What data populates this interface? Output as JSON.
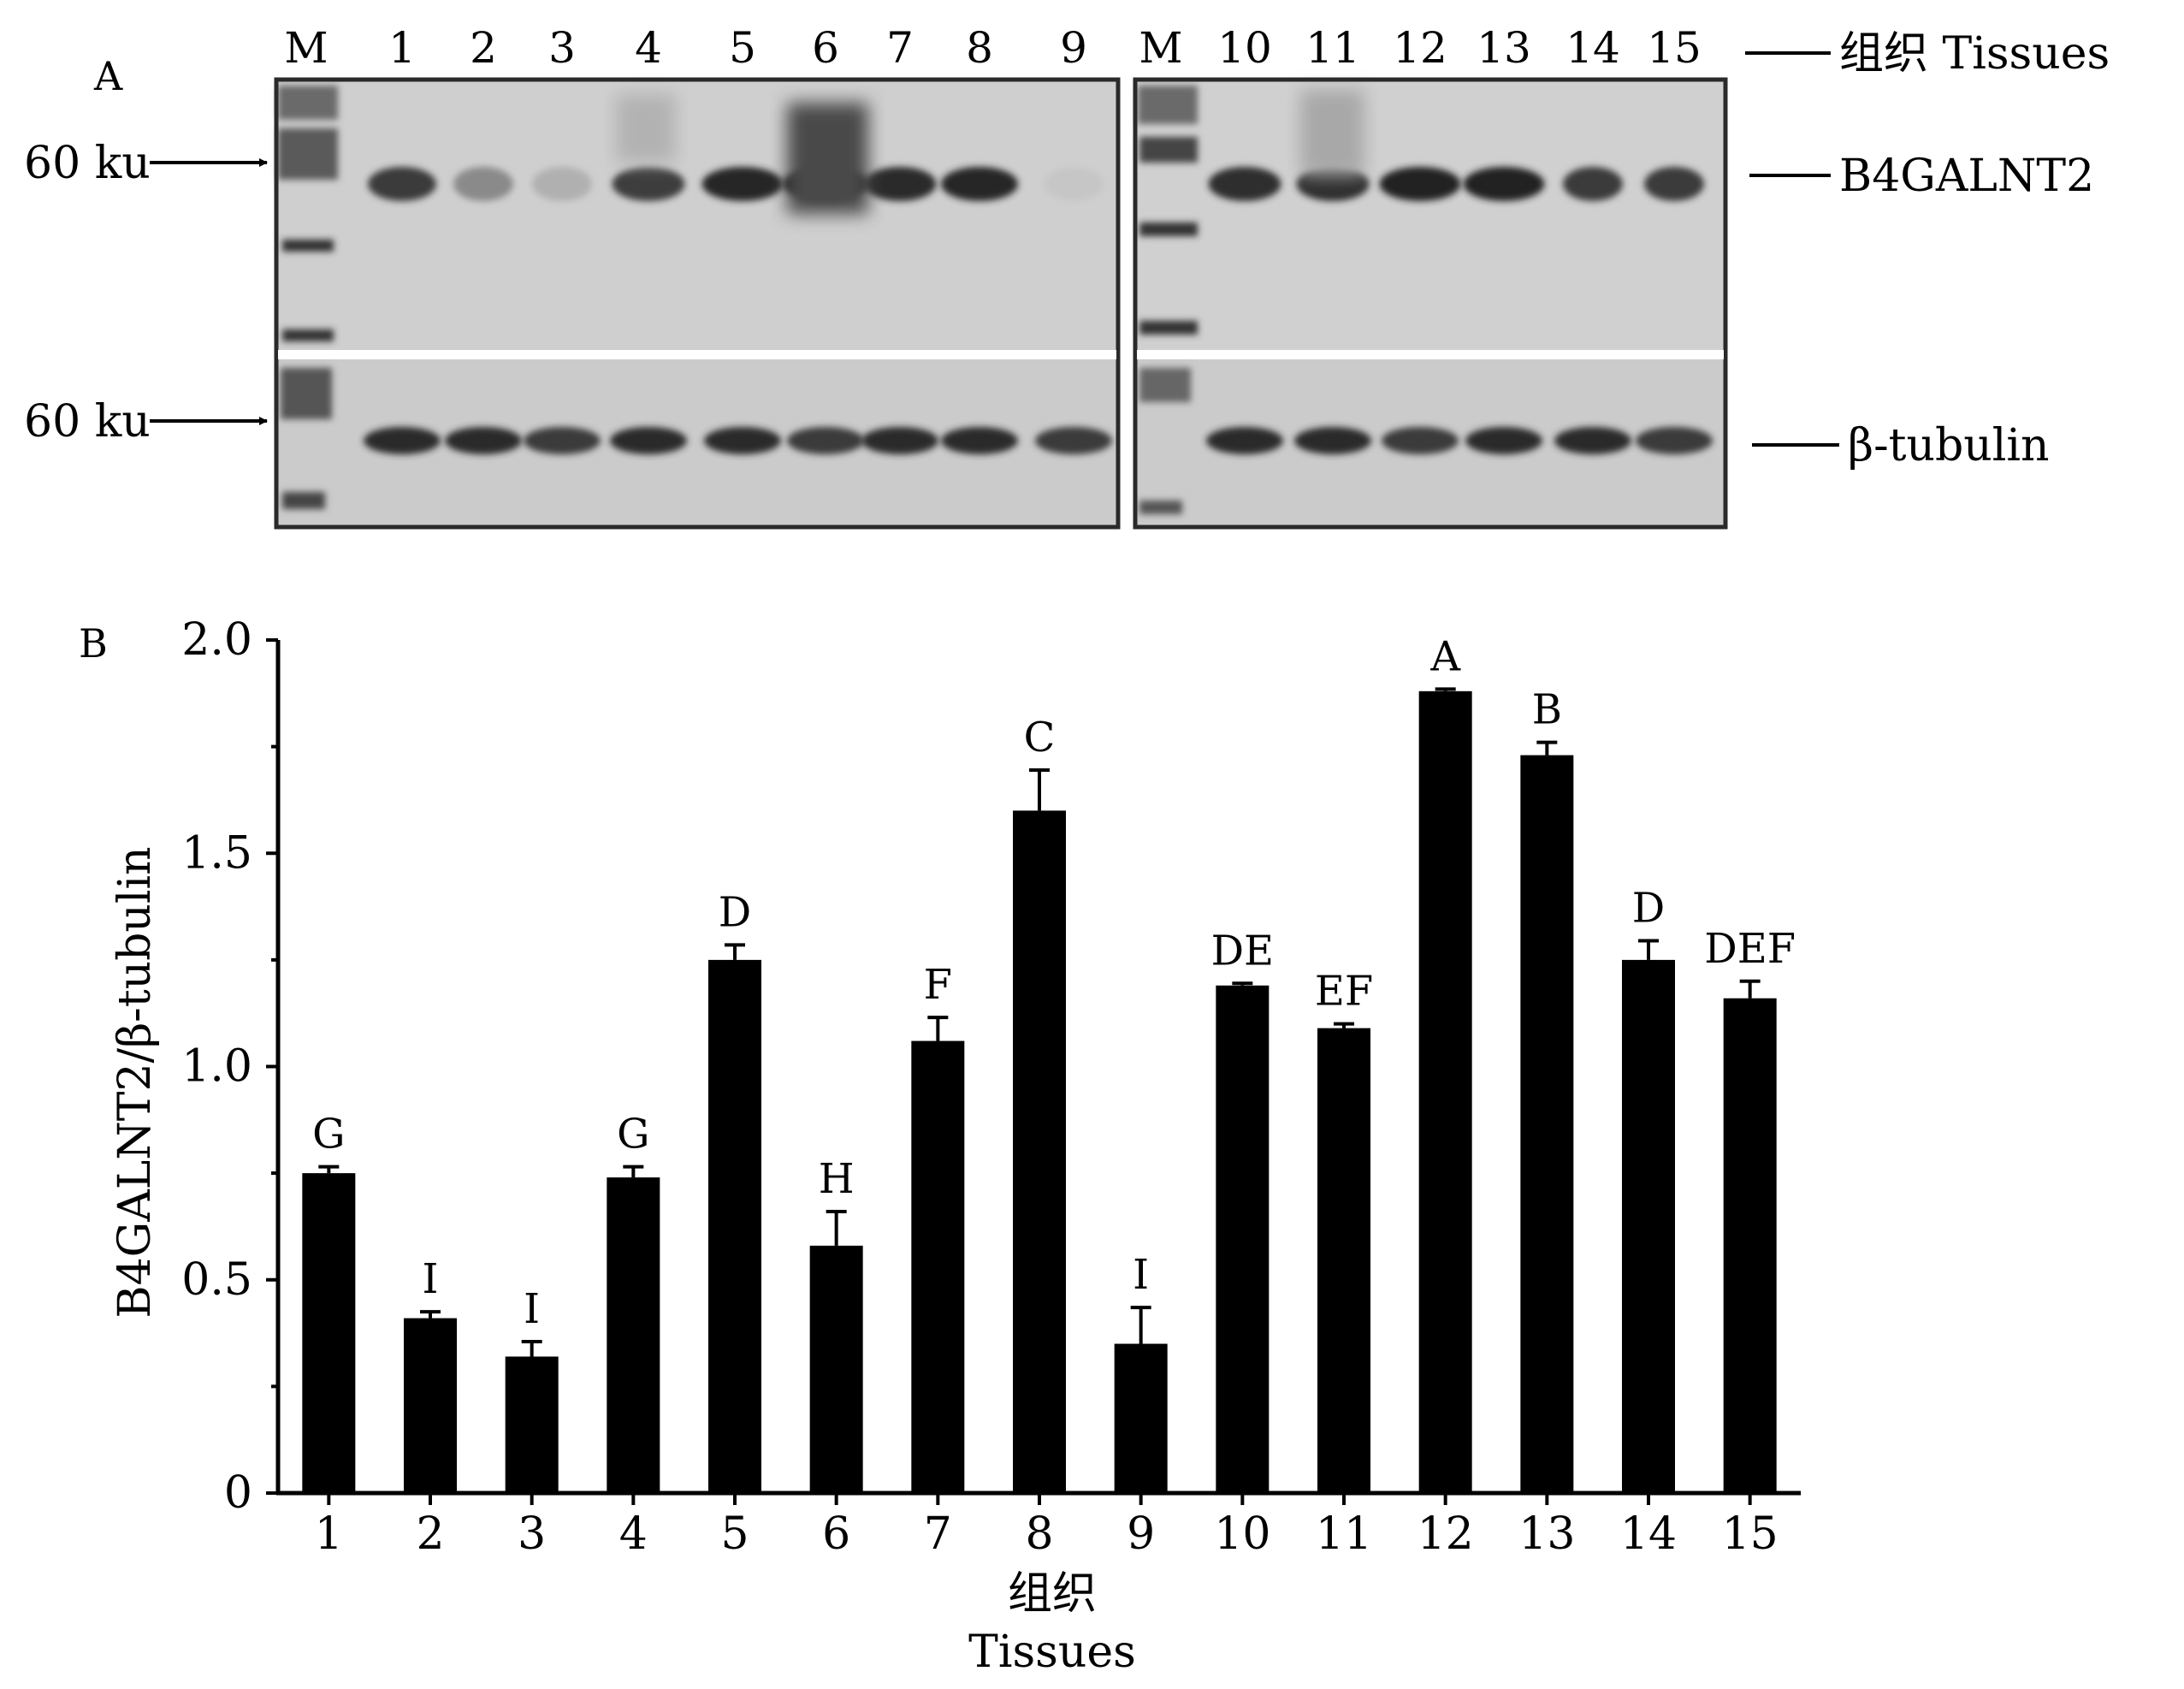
{
  "panel_a": {
    "letter": "A",
    "lane_labels_left": [
      "M",
      "1",
      "2",
      "3",
      "4",
      "5",
      "6",
      "7",
      "8",
      "9"
    ],
    "lane_labels_right": [
      "M",
      "10",
      "11",
      "12",
      "13",
      "14",
      "15"
    ],
    "marker_label_top": "60 ku",
    "marker_label_bottom": "60 ku",
    "header_label": "组织 Tissues",
    "band_label_top": "B4GALNT2",
    "band_label_bottom": "β-tubulin"
  },
  "panel_b": {
    "letter": "B"
  },
  "chart_data": {
    "type": "bar",
    "categories": [
      "1",
      "2",
      "3",
      "4",
      "5",
      "6",
      "7",
      "8",
      "9",
      "10",
      "11",
      "12",
      "13",
      "14",
      "15"
    ],
    "values": [
      0.75,
      0.41,
      0.32,
      0.74,
      1.25,
      0.58,
      1.06,
      1.6,
      0.35,
      1.19,
      1.09,
      1.88,
      1.73,
      1.25,
      1.16
    ],
    "errors": [
      0.015,
      0.015,
      0.035,
      0.025,
      0.035,
      0.08,
      0.055,
      0.095,
      0.085,
      0.005,
      0.01,
      0.005,
      0.03,
      0.045,
      0.04
    ],
    "significance": [
      "G",
      "I",
      "I",
      "G",
      "D",
      "H",
      "F",
      "C",
      "I",
      "DE",
      "EF",
      "A",
      "B",
      "D",
      "DEF"
    ],
    "xlabel_cn": "组织",
    "xlabel_en": "Tissues",
    "ylabel": "B4GALNT2/β-tubulin",
    "ylim": [
      0,
      2.0
    ],
    "yticks": [
      0,
      0.5,
      1.0,
      1.5,
      2.0
    ],
    "ytick_labels": [
      "0",
      "0.5",
      "1.0",
      "1.5",
      "2.0"
    ],
    "bar_color": "#000000"
  }
}
